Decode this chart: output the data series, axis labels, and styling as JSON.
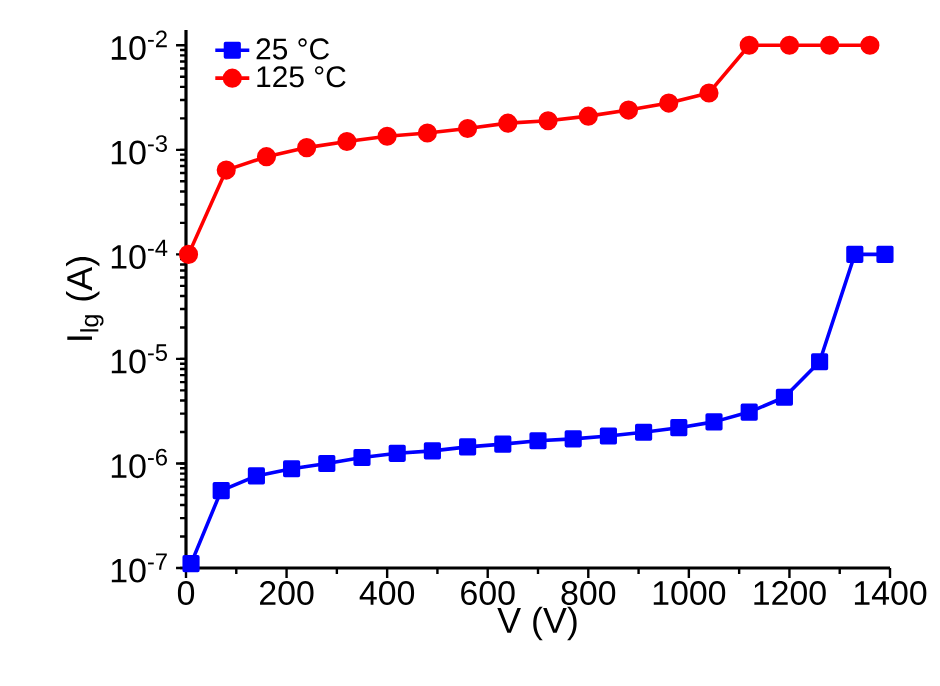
{
  "chart_data": {
    "type": "line",
    "xlabel": "V (V)",
    "ylabel": "I$_{lg}$ (A)",
    "log": "y",
    "xlim": [
      0,
      1400
    ],
    "ylim": [
      1e-07,
      0.014
    ],
    "xticks": [
      0,
      200,
      400,
      600,
      800,
      1000,
      1200,
      1400
    ],
    "yticks": [
      {
        "value": 1e-07,
        "label": "10$^{-7}$"
      },
      {
        "value": 1e-06,
        "label": "10$^{-6}$"
      },
      {
        "value": 1e-05,
        "label": "10$^{-5}$"
      },
      {
        "value": 0.0001,
        "label": "10$^{-4}$"
      },
      {
        "value": 0.001,
        "label": "10$^{-3}$"
      },
      {
        "value": 0.01,
        "label": "10$^{-2}$"
      }
    ],
    "legend": "top left",
    "grid": false,
    "series": [
      {
        "name": "25 °C",
        "color": "#0000ff",
        "marker": "square",
        "x": [
          10,
          70,
          140,
          210,
          280,
          350,
          420,
          490,
          560,
          630,
          700,
          770,
          840,
          910,
          980,
          1050,
          1120,
          1190,
          1260,
          1330,
          1390
        ],
        "values": [
          1.1e-07,
          5.5e-07,
          7.6e-07,
          8.9e-07,
          1e-06,
          1.14e-06,
          1.25e-06,
          1.32e-06,
          1.44e-06,
          1.53e-06,
          1.65e-06,
          1.72e-06,
          1.83e-06,
          1.99e-06,
          2.2e-06,
          2.5e-06,
          3.1e-06,
          4.3e-06,
          9.4e-06,
          0.0001,
          0.0001
        ]
      },
      {
        "name": "125 °C",
        "color": "#ff0000",
        "marker": "circle",
        "x": [
          5,
          80,
          160,
          240,
          320,
          400,
          480,
          560,
          640,
          720,
          800,
          880,
          960,
          1040,
          1120,
          1200,
          1280,
          1360
        ],
        "values": [
          0.0001,
          0.00064,
          0.00086,
          0.00105,
          0.0012,
          0.00135,
          0.00145,
          0.0016,
          0.0018,
          0.0019,
          0.0021,
          0.0024,
          0.0028,
          0.0035,
          0.01,
          0.01,
          0.01,
          0.01
        ]
      }
    ]
  }
}
